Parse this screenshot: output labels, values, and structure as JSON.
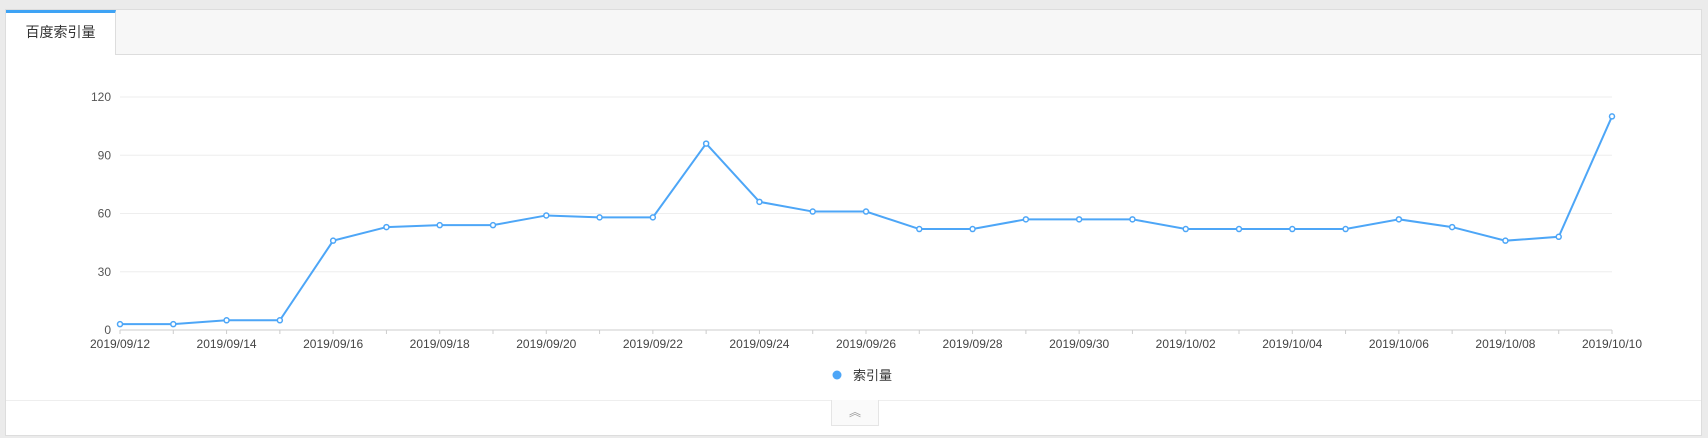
{
  "tabs": [
    {
      "label": "百度索引量",
      "active": true
    }
  ],
  "collapse_icon": "double-chevron-up-icon",
  "chart_data": {
    "type": "line",
    "title": "",
    "xlabel": "",
    "ylabel": "",
    "categories": [
      "2019/09/12",
      "2019/09/13",
      "2019/09/14",
      "2019/09/15",
      "2019/09/16",
      "2019/09/17",
      "2019/09/18",
      "2019/09/19",
      "2019/09/20",
      "2019/09/21",
      "2019/09/22",
      "2019/09/23",
      "2019/09/24",
      "2019/09/25",
      "2019/09/26",
      "2019/09/27",
      "2019/09/28",
      "2019/09/29",
      "2019/09/30",
      "2019/10/01",
      "2019/10/02",
      "2019/10/03",
      "2019/10/04",
      "2019/10/05",
      "2019/10/06",
      "2019/10/07",
      "2019/10/08",
      "2019/10/09",
      "2019/10/10"
    ],
    "series": [
      {
        "name": "索引量",
        "color": "#4da6f7",
        "values": [
          3,
          3,
          5,
          5,
          46,
          53,
          54,
          54,
          59,
          58,
          58,
          96,
          66,
          61,
          61,
          52,
          52,
          57,
          57,
          57,
          52,
          52,
          52,
          52,
          57,
          53,
          46,
          48,
          110
        ]
      }
    ],
    "ylim": [
      0,
      120
    ],
    "yticks": [
      0,
      30,
      60,
      90,
      120
    ],
    "xtick_every": 2,
    "grid": true,
    "legend": "bottom-center"
  }
}
